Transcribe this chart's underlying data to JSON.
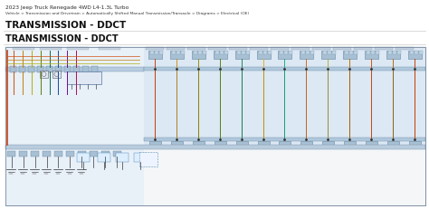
{
  "bg_color": "#ffffff",
  "title_line1": "2023 Jeep Truck Renegade 4WD L4-1.3L Turbo",
  "title_line2": "Vehicle > Transmission and Drivetrain > Automatically Shifted Manual Transmission/Transaxle > Diagrams > Electrical (OE)",
  "section_title": "TRANSMISSION - DDCT",
  "diagram_title": "TRANSMISSION - DDCT",
  "divider_color": "#cccccc",
  "diagram_outer_bg": "#f4f6f8",
  "bus_bar_color": "#c5d5e5",
  "bus_bar_edge": "#9ab0c5",
  "connector_fill": "#a8c0d4",
  "connector_edge": "#6888a0",
  "right_bg_color": "#dce8f4",
  "left_bg_color": "#e8f0f8",
  "wire_colors_left": [
    "#d05010",
    "#c08010",
    "#b0b010",
    "#588010",
    "#106850",
    "#1848a0",
    "#681090",
    "#a81050"
  ],
  "wire_colors_right": [
    "#c84010",
    "#d09020",
    "#989010",
    "#608018",
    "#208860",
    "#e0b030",
    "#20b080",
    "#d07020",
    "#b0b040",
    "#c07000",
    "#d05810",
    "#b07018"
  ],
  "wire_colors_right2": [
    "#c04000",
    "#b08020",
    "#888000",
    "#508010",
    "#108050",
    "#c09000",
    "#10a070",
    "#c06010",
    "#909030",
    "#a06000",
    "#c04810",
    "#906010"
  ],
  "component_fill": "#e0e8f4",
  "component_edge": "#5878a0",
  "bottom_fill": "#ddeeff",
  "bottom_edge": "#6090b8"
}
